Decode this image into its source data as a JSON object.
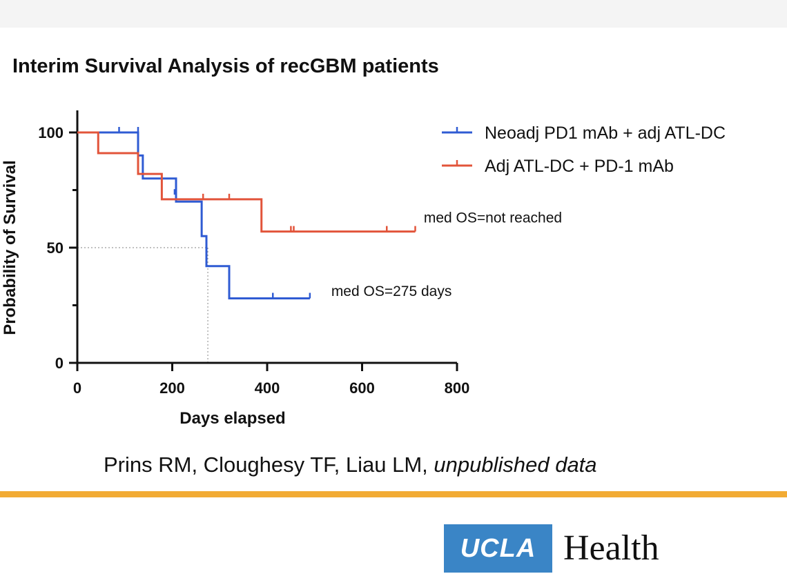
{
  "slide": {
    "title": "Interim Survival Analysis of recGBM patients",
    "caption_authors": "Prins RM, Cloughesy TF, Liau LM, ",
    "caption_italic": "unpublished data",
    "rule_color": "#f2ab34"
  },
  "logo": {
    "mark": "UCLA",
    "word": "Health",
    "mark_color": "#3a85c6"
  },
  "chart_data": {
    "type": "line",
    "step": true,
    "xlabel": "Days elapsed",
    "ylabel": "Probability of Survival",
    "xlim": [
      0,
      800
    ],
    "ylim": [
      0,
      100
    ],
    "xticks": [
      0,
      200,
      400,
      600,
      800
    ],
    "yticks": [
      0,
      50,
      100
    ],
    "legend_position": "top-right",
    "series": [
      {
        "name": "Neoadj PD1 mAb + adj ATL-DC",
        "color": "#2f5bd3",
        "steps": [
          [
            0,
            100
          ],
          [
            128,
            100
          ],
          [
            128,
            90
          ],
          [
            138,
            90
          ],
          [
            138,
            80
          ],
          [
            208,
            80
          ],
          [
            208,
            70
          ],
          [
            262,
            70
          ],
          [
            262,
            55
          ],
          [
            272,
            55
          ],
          [
            272,
            42
          ],
          [
            320,
            42
          ],
          [
            320,
            28
          ],
          [
            490,
            28
          ]
        ],
        "censored": [
          [
            88,
            100
          ],
          [
            128,
            100
          ],
          [
            205,
            73
          ],
          [
            412,
            28
          ],
          [
            490,
            28
          ]
        ]
      },
      {
        "name": "Adj ATL-DC + PD-1 mAb",
        "color": "#e2543a",
        "steps": [
          [
            0,
            100
          ],
          [
            44,
            100
          ],
          [
            44,
            91
          ],
          [
            128,
            91
          ],
          [
            128,
            82
          ],
          [
            178,
            82
          ],
          [
            178,
            71
          ],
          [
            388,
            71
          ],
          [
            388,
            57
          ],
          [
            712,
            57
          ]
        ],
        "censored": [
          [
            265,
            71
          ],
          [
            320,
            71
          ],
          [
            450,
            57
          ],
          [
            456,
            57
          ],
          [
            652,
            57
          ],
          [
            712,
            57
          ]
        ]
      }
    ],
    "median_guide": {
      "x": 275,
      "y": 50,
      "color": "#999999"
    },
    "annotations": [
      {
        "text": "med OS=not reached",
        "x": 730,
        "y": 61
      },
      {
        "text": "med OS=275 days",
        "x": 535,
        "y": 29
      }
    ]
  }
}
